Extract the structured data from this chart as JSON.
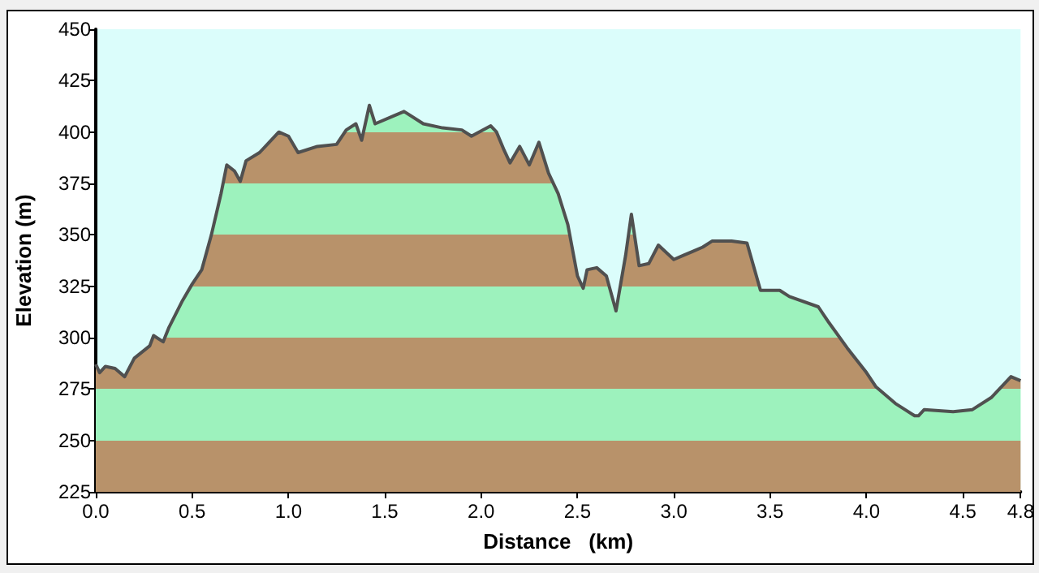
{
  "chart_data": {
    "type": "area",
    "xlabel": "Distance   (km)",
    "ylabel": "Elevation (m)",
    "x": [
      0,
      0.02,
      0.05,
      0.1,
      0.15,
      0.2,
      0.28,
      0.3,
      0.35,
      0.38,
      0.45,
      0.5,
      0.55,
      0.6,
      0.65,
      0.68,
      0.72,
      0.75,
      0.78,
      0.85,
      0.9,
      0.95,
      1.0,
      1.05,
      1.15,
      1.25,
      1.3,
      1.35,
      1.38,
      1.42,
      1.45,
      1.55,
      1.6,
      1.7,
      1.8,
      1.9,
      1.95,
      2.05,
      2.08,
      2.12,
      2.15,
      2.2,
      2.25,
      2.3,
      2.35,
      2.4,
      2.45,
      2.5,
      2.53,
      2.55,
      2.6,
      2.65,
      2.7,
      2.75,
      2.78,
      2.82,
      2.87,
      2.92,
      3.0,
      3.05,
      3.1,
      3.15,
      3.2,
      3.3,
      3.38,
      3.45,
      3.55,
      3.6,
      3.75,
      3.8,
      3.9,
      4.0,
      4.05,
      4.15,
      4.25,
      4.27,
      4.3,
      4.45,
      4.55,
      4.65,
      4.75,
      4.8
    ],
    "series": [
      {
        "color": "#505050",
        "values": [
          287,
          283,
          286,
          285,
          281,
          290,
          296,
          301,
          298,
          305,
          318,
          326,
          333,
          350,
          370,
          384,
          381,
          376,
          386,
          390,
          395,
          400,
          398,
          390,
          393,
          394,
          401,
          404,
          396,
          413,
          404,
          408,
          410,
          404,
          402,
          401,
          398,
          403,
          400,
          391,
          385,
          393,
          384,
          395,
          380,
          370,
          355,
          330,
          324,
          333,
          334,
          330,
          313,
          340,
          360,
          335,
          336,
          345,
          338,
          340,
          342,
          344,
          347,
          347,
          346,
          323,
          323,
          320,
          315,
          308,
          295,
          283,
          276,
          268,
          262,
          262,
          265,
          264,
          265,
          271,
          281,
          279
        ]
      }
    ],
    "xlim": [
      0,
      4.8
    ],
    "xticks": [
      {
        "value": 0,
        "label": "0.0"
      },
      {
        "value": 0.5,
        "label": "0.5"
      },
      {
        "value": 1,
        "label": "1.0"
      },
      {
        "value": 1.5,
        "label": "1.5"
      },
      {
        "value": 2,
        "label": "2.0"
      },
      {
        "value": 2.5,
        "label": "2.5"
      },
      {
        "value": 3,
        "label": "3.0"
      },
      {
        "value": 3.5,
        "label": "3.5"
      },
      {
        "value": 4,
        "label": "4.0"
      },
      {
        "value": 4.5,
        "label": "4.5"
      },
      {
        "value": 4.8,
        "label": "4.8"
      }
    ],
    "ylim": [
      225,
      450
    ],
    "yticks": [
      225,
      250,
      275,
      300,
      325,
      350,
      375,
      400,
      425,
      450
    ],
    "grid": false,
    "marker": "none",
    "line_style": "solid"
  }
}
